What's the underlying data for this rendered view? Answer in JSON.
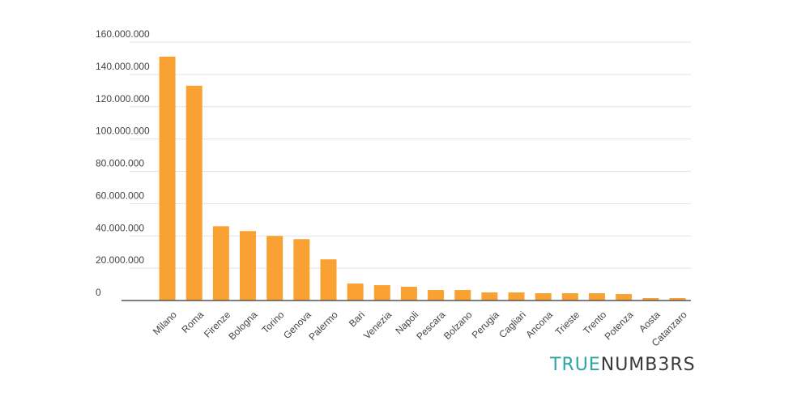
{
  "chart_data": {
    "type": "bar",
    "categories": [
      "Milano",
      "Roma",
      "Firenze",
      "Bologna",
      "Torino",
      "Genova",
      "Palermo",
      "Bari",
      "Venezia",
      "Napoli",
      "Pescara",
      "Bolzano",
      "Perugia",
      "Cagliari",
      "Ancona",
      "Trieste",
      "Trento",
      "Potenza",
      "Aosta",
      "Catanzaro"
    ],
    "values": [
      151000000,
      133000000,
      46000000,
      43000000,
      40000000,
      38000000,
      25500000,
      10500000,
      9500000,
      8500000,
      6500000,
      6500000,
      5000000,
      5000000,
      4500000,
      4500000,
      4500000,
      4000000,
      1500000,
      1500000
    ],
    "ylim": [
      0,
      160000000
    ],
    "yticks": [
      0,
      20000000,
      40000000,
      60000000,
      80000000,
      100000000,
      120000000,
      140000000,
      160000000
    ],
    "ytick_labels": [
      "0",
      "20.000.000",
      "40.000.000",
      "60.000.000",
      "80.000.000",
      "100.000.000",
      "120.000.000",
      "140.000.000",
      "160.000.000"
    ],
    "grid": true,
    "bar_color": "#f9a233",
    "grid_color": "#e3e3e3",
    "axis_color": "#555555"
  },
  "brand": {
    "part1": "TRUE",
    "part2": "NUMB3RS",
    "color1": "#2ba6a6",
    "color2": "#3a3a3a"
  }
}
